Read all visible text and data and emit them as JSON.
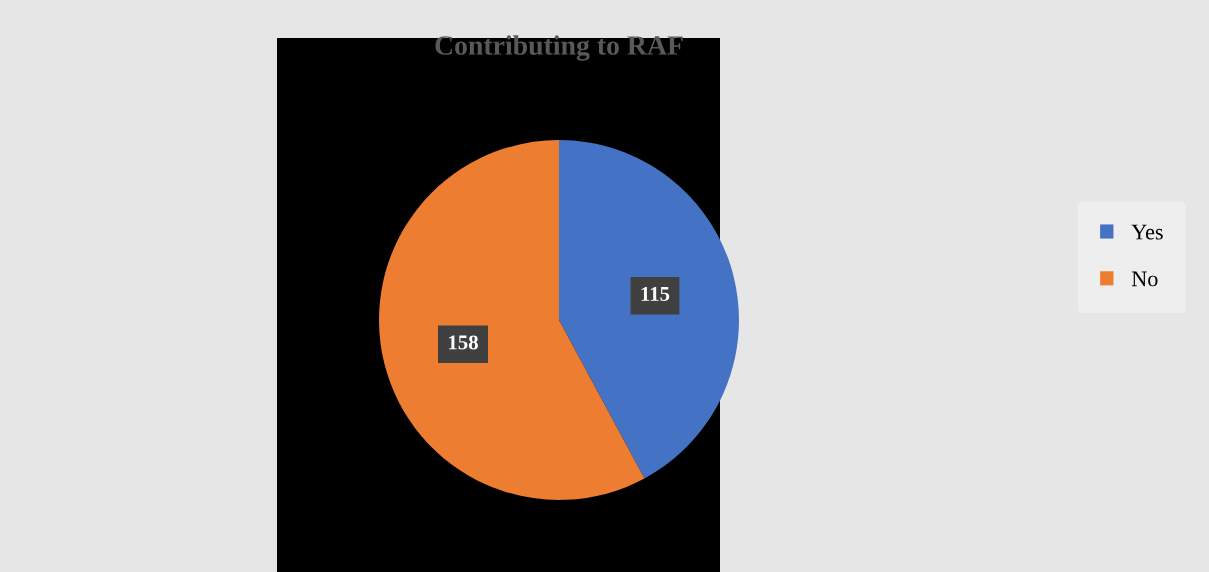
{
  "chart_data": {
    "type": "pie",
    "title": "Contributing to RAF",
    "categories": [
      "Yes",
      "No"
    ],
    "values": [
      115,
      158
    ],
    "colors": [
      "#4472c4",
      "#ed7d31"
    ],
    "data_labels": true,
    "legend": "right"
  }
}
